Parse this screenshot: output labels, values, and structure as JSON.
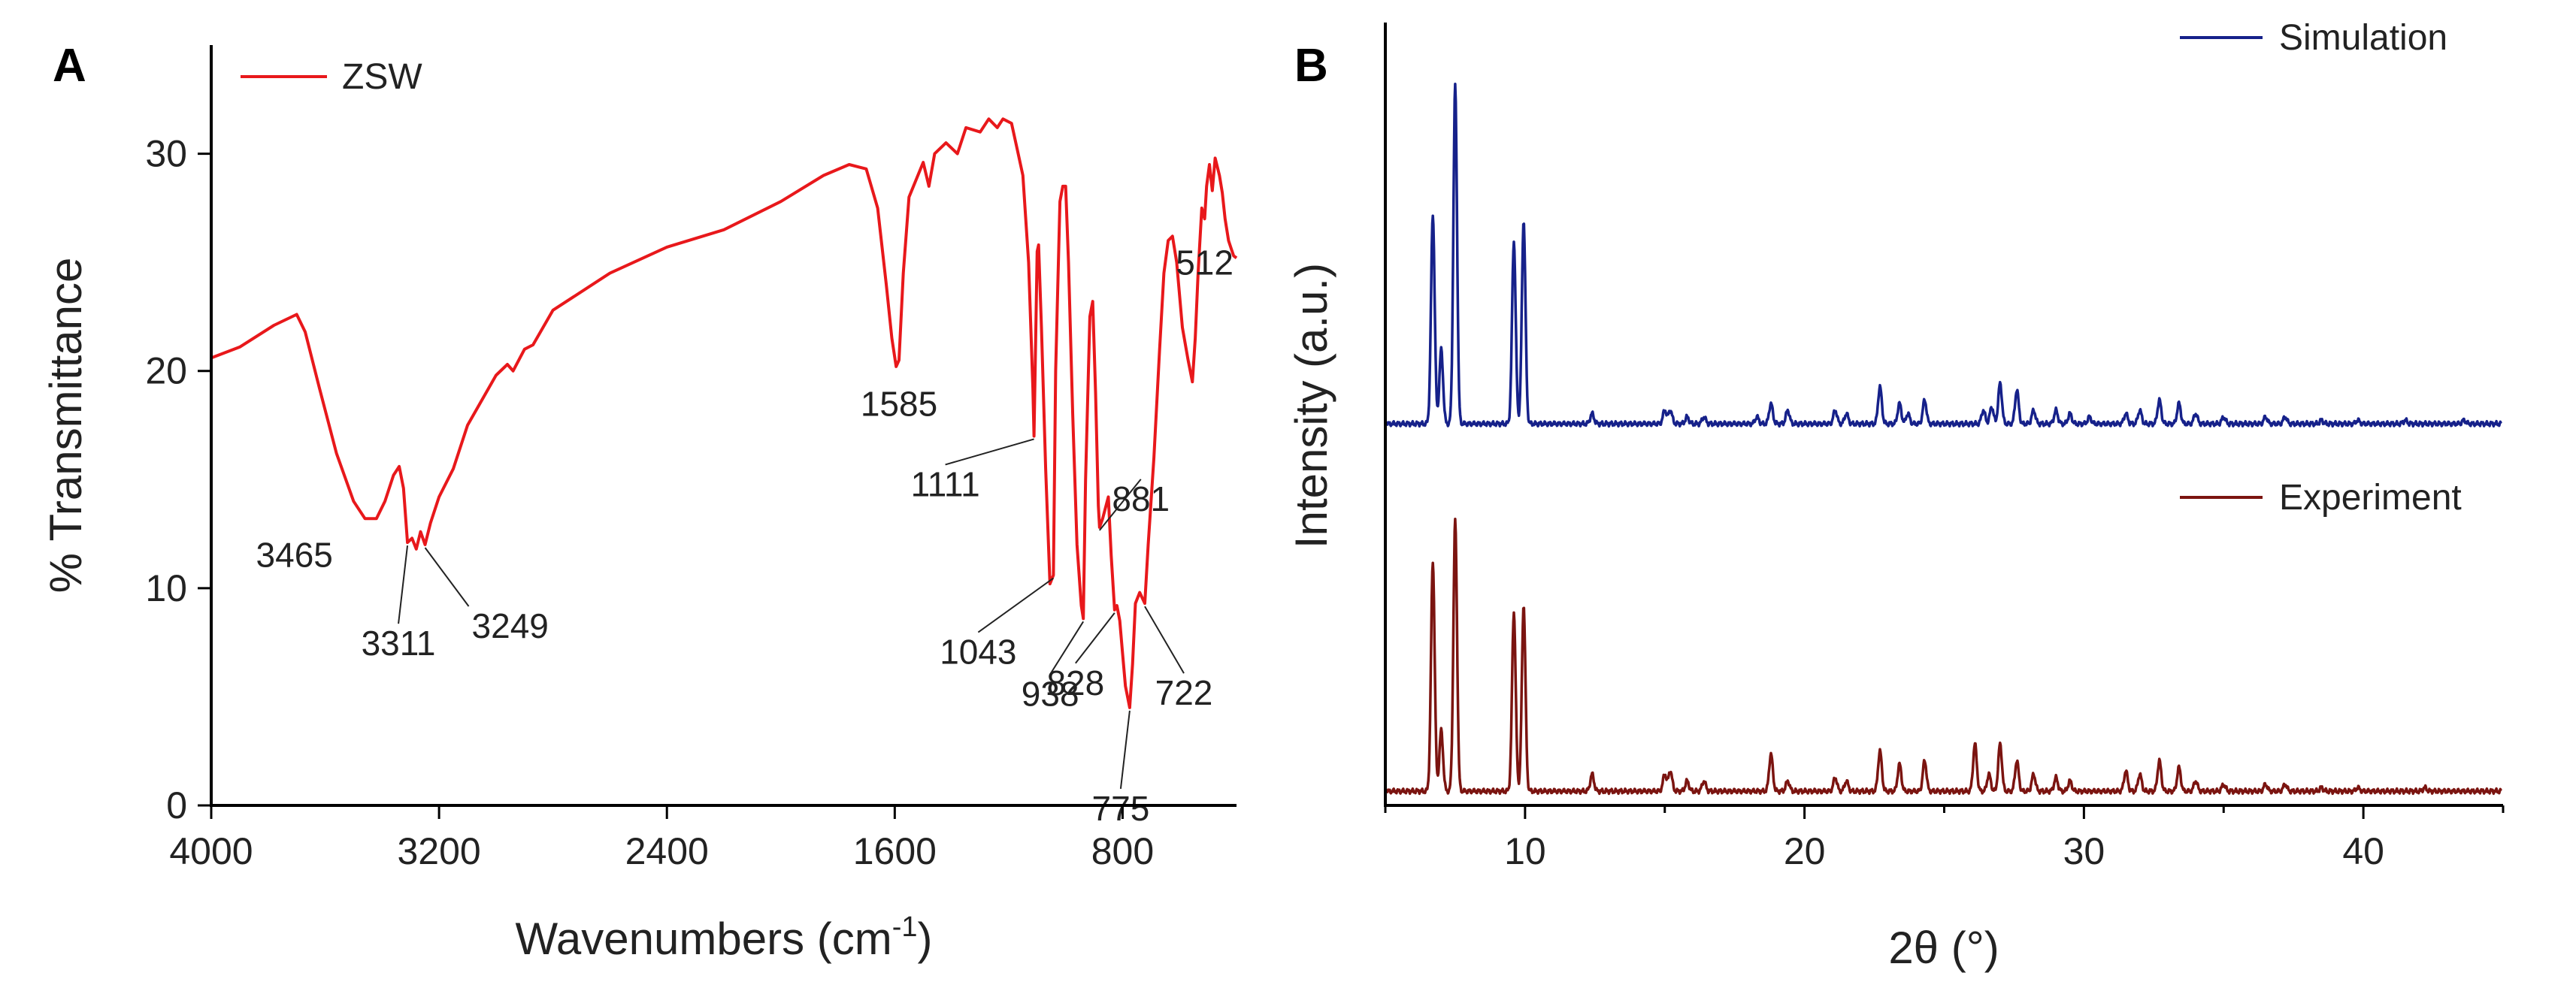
{
  "chart_data": [
    {
      "panel": "A",
      "type": "line",
      "xlabel": "Wavenumbers (cm",
      "xlabel_sup": "-1",
      "xlabel_tail": ")",
      "ylabel": "% Transmittance",
      "xlim": [
        4000,
        400
      ],
      "ylim": [
        0,
        35
      ],
      "x_ticks": [
        4000,
        3200,
        2400,
        1600,
        800
      ],
      "y_ticks": [
        0,
        10,
        20,
        30
      ],
      "legend": "ZSW",
      "color": "#e8181b",
      "series": [
        {
          "name": "ZSW",
          "points": [
            [
              4000,
              20.6
            ],
            [
              3900,
              21.1
            ],
            [
              3780,
              22.1
            ],
            [
              3700,
              22.6
            ],
            [
              3670,
              21.8
            ],
            [
              3620,
              19.2
            ],
            [
              3560,
              16.2
            ],
            [
              3500,
              14.0
            ],
            [
              3460,
              13.2
            ],
            [
              3420,
              13.2
            ],
            [
              3390,
              14.0
            ],
            [
              3360,
              15.2
            ],
            [
              3340,
              15.6
            ],
            [
              3325,
              14.6
            ],
            [
              3311,
              12.1
            ],
            [
              3295,
              12.3
            ],
            [
              3280,
              11.8
            ],
            [
              3265,
              12.6
            ],
            [
              3249,
              12.0
            ],
            [
              3230,
              13.0
            ],
            [
              3200,
              14.2
            ],
            [
              3150,
              15.5
            ],
            [
              3100,
              17.5
            ],
            [
              3000,
              19.8
            ],
            [
              2960,
              20.3
            ],
            [
              2940,
              20.0
            ],
            [
              2900,
              21.0
            ],
            [
              2870,
              21.2
            ],
            [
              2800,
              22.8
            ],
            [
              2600,
              24.5
            ],
            [
              2400,
              25.7
            ],
            [
              2200,
              26.5
            ],
            [
              2000,
              27.8
            ],
            [
              1850,
              29.0
            ],
            [
              1760,
              29.5
            ],
            [
              1700,
              29.3
            ],
            [
              1660,
              27.5
            ],
            [
              1630,
              24.0
            ],
            [
              1610,
              21.5
            ],
            [
              1595,
              20.2
            ],
            [
              1585,
              20.5
            ],
            [
              1570,
              24.5
            ],
            [
              1550,
              28.0
            ],
            [
              1500,
              29.6
            ],
            [
              1480,
              28.5
            ],
            [
              1460,
              30.0
            ],
            [
              1420,
              30.5
            ],
            [
              1380,
              30.0
            ],
            [
              1350,
              31.2
            ],
            [
              1300,
              31.0
            ],
            [
              1270,
              31.6
            ],
            [
              1240,
              31.2
            ],
            [
              1220,
              31.6
            ],
            [
              1190,
              31.4
            ],
            [
              1170,
              30.2
            ],
            [
              1150,
              29.0
            ],
            [
              1130,
              25.0
            ],
            [
              1115,
              19.2
            ],
            [
              1111,
              17.0
            ],
            [
              1100,
              25.5
            ],
            [
              1095,
              25.8
            ],
            [
              1085,
              22.0
            ],
            [
              1070,
              15.5
            ],
            [
              1055,
              10.2
            ],
            [
              1043,
              10.6
            ],
            [
              1035,
              20.0
            ],
            [
              1020,
              27.8
            ],
            [
              1010,
              28.5
            ],
            [
              1000,
              28.5
            ],
            [
              990,
              25.0
            ],
            [
              975,
              18.0
            ],
            [
              960,
              12.0
            ],
            [
              945,
              9.2
            ],
            [
              938,
              8.6
            ],
            [
              930,
              15.0
            ],
            [
              915,
              22.5
            ],
            [
              905,
              23.2
            ],
            [
              895,
              19.0
            ],
            [
              885,
              13.8
            ],
            [
              881,
              12.8
            ],
            [
              870,
              13.2
            ],
            [
              850,
              14.2
            ],
            [
              840,
              11.5
            ],
            [
              828,
              9.0
            ],
            [
              820,
              9.2
            ],
            [
              810,
              8.5
            ],
            [
              800,
              7.0
            ],
            [
              790,
              5.5
            ],
            [
              775,
              4.5
            ],
            [
              765,
              6.5
            ],
            [
              755,
              9.3
            ],
            [
              740,
              9.8
            ],
            [
              722,
              9.3
            ],
            [
              710,
              12.0
            ],
            [
              690,
              16.0
            ],
            [
              670,
              21.0
            ],
            [
              655,
              24.5
            ],
            [
              640,
              26.0
            ],
            [
              625,
              26.2
            ],
            [
              610,
              25.0
            ],
            [
              590,
              22.0
            ],
            [
              570,
              20.5
            ],
            [
              555,
              19.5
            ],
            [
              545,
              21.5
            ],
            [
              535,
              24.5
            ],
            [
              522,
              27.5
            ],
            [
              512,
              27.0
            ],
            [
              505,
              28.5
            ],
            [
              495,
              29.5
            ],
            [
              485,
              28.3
            ],
            [
              475,
              29.8
            ],
            [
              460,
              29.0
            ],
            [
              450,
              28.2
            ],
            [
              440,
              27.0
            ],
            [
              428,
              26.0
            ],
            [
              418,
              25.6
            ],
            [
              410,
              25.3
            ],
            [
              400,
              25.2
            ]
          ]
        }
      ],
      "annotations": [
        {
          "label": "3465",
          "x": 3465,
          "y": 13.2
        },
        {
          "label": "3311",
          "x": 3311,
          "y": 12.1
        },
        {
          "label": "3249",
          "x": 3249,
          "y": 12.0
        },
        {
          "label": "1585",
          "x": 1585,
          "y": 20.5
        },
        {
          "label": "1111",
          "x": 1111,
          "y": 17.0
        },
        {
          "label": "1043",
          "x": 1043,
          "y": 10.6
        },
        {
          "label": "881",
          "x": 881,
          "y": 12.8
        },
        {
          "label": "938",
          "x": 938,
          "y": 8.6
        },
        {
          "label": "828",
          "x": 828,
          "y": 9.0
        },
        {
          "label": "775",
          "x": 775,
          "y": 4.5
        },
        {
          "label": "722",
          "x": 722,
          "y": 9.3
        },
        {
          "label": "512",
          "x": 512,
          "y": 27.0
        }
      ]
    },
    {
      "panel": "B",
      "type": "line",
      "xlabel": "2θ (°)",
      "ylabel": "Intensity (a.u.)",
      "xlim": [
        5,
        45
      ],
      "x_ticks": [
        10,
        20,
        30,
        40
      ],
      "y_ticks": [],
      "series": [
        {
          "name": "Simulation",
          "color": "#16218a",
          "baseline": 1.0,
          "peaks": [
            [
              6.7,
              0.62
            ],
            [
              7.0,
              0.22
            ],
            [
              7.5,
              1.0
            ],
            [
              9.6,
              0.54
            ],
            [
              9.95,
              0.6
            ],
            [
              12.4,
              0.03
            ],
            [
              15.0,
              0.04
            ],
            [
              15.2,
              0.04
            ],
            [
              15.8,
              0.02
            ],
            [
              16.4,
              0.02
            ],
            [
              18.3,
              0.02
            ],
            [
              18.8,
              0.06
            ],
            [
              19.4,
              0.04
            ],
            [
              21.1,
              0.04
            ],
            [
              21.5,
              0.03
            ],
            [
              22.7,
              0.11
            ],
            [
              23.4,
              0.06
            ],
            [
              23.7,
              0.03
            ],
            [
              24.3,
              0.07
            ],
            [
              26.4,
              0.04
            ],
            [
              26.7,
              0.05
            ],
            [
              27.0,
              0.12
            ],
            [
              27.6,
              0.1
            ],
            [
              28.2,
              0.04
            ],
            [
              29.0,
              0.04
            ],
            [
              29.5,
              0.03
            ],
            [
              30.2,
              0.02
            ],
            [
              31.5,
              0.03
            ],
            [
              32.0,
              0.04
            ],
            [
              32.7,
              0.07
            ],
            [
              33.4,
              0.06
            ],
            [
              34.0,
              0.03
            ],
            [
              35.0,
              0.02
            ],
            [
              36.5,
              0.02
            ],
            [
              37.2,
              0.02
            ],
            [
              38.5,
              0.01
            ],
            [
              39.8,
              0.01
            ],
            [
              41.5,
              0.01
            ],
            [
              43.6,
              0.01
            ]
          ]
        },
        {
          "name": "Experiment",
          "color": "#7b1410",
          "baseline": 0.0,
          "peaks": [
            [
              6.7,
              0.68
            ],
            [
              7.0,
              0.18
            ],
            [
              7.5,
              0.8
            ],
            [
              9.6,
              0.53
            ],
            [
              9.95,
              0.55
            ],
            [
              12.4,
              0.05
            ],
            [
              15.0,
              0.05
            ],
            [
              15.2,
              0.06
            ],
            [
              15.8,
              0.03
            ],
            [
              16.4,
              0.03
            ],
            [
              18.8,
              0.11
            ],
            [
              19.4,
              0.03
            ],
            [
              21.1,
              0.04
            ],
            [
              21.5,
              0.03
            ],
            [
              22.7,
              0.12
            ],
            [
              23.4,
              0.08
            ],
            [
              24.3,
              0.09
            ],
            [
              26.1,
              0.14
            ],
            [
              26.6,
              0.05
            ],
            [
              27.0,
              0.14
            ],
            [
              27.6,
              0.09
            ],
            [
              28.2,
              0.05
            ],
            [
              29.0,
              0.04
            ],
            [
              29.5,
              0.03
            ],
            [
              31.5,
              0.06
            ],
            [
              32.0,
              0.05
            ],
            [
              32.7,
              0.09
            ],
            [
              33.4,
              0.07
            ],
            [
              34.0,
              0.03
            ],
            [
              35.0,
              0.02
            ],
            [
              36.5,
              0.02
            ],
            [
              37.2,
              0.02
            ],
            [
              38.5,
              0.01
            ],
            [
              39.8,
              0.01
            ],
            [
              42.2,
              0.01
            ]
          ]
        }
      ]
    }
  ]
}
